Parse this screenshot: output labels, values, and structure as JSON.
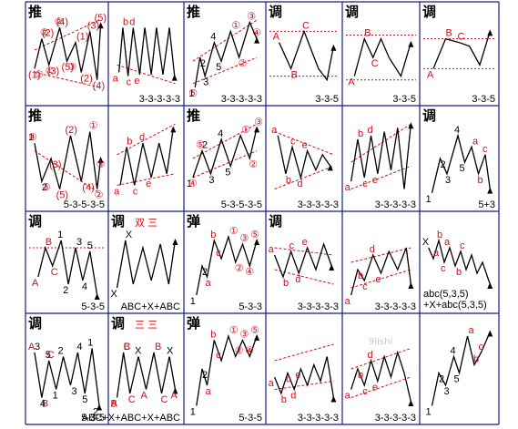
{
  "colors": {
    "grid": "#1a1a8a",
    "wave": "#000000",
    "label_red": "#d0101a",
    "channel_red": "#d0101a"
  },
  "watermark": "9lishi",
  "cells": [
    {
      "id": "r1c1",
      "title": "推",
      "caption": "",
      "labels": [
        "(1)",
        "(2)",
        "(3)",
        "(4)",
        "(5)",
        "(1)",
        "(2)",
        "(3)",
        "(4)",
        "(5)",
        "①",
        "②",
        "①",
        "②",
        "③"
      ]
    },
    {
      "id": "r1c2",
      "title": "",
      "caption": "3-3-3-3-3",
      "labels": [
        "a",
        "b",
        "c",
        "d",
        "e"
      ]
    },
    {
      "id": "r1c3",
      "title": "推",
      "caption": "3-3-3-3-3",
      "labels": [
        "1",
        "2",
        "3",
        "4",
        "5",
        "①",
        "②",
        "③",
        "④",
        "⑤"
      ]
    },
    {
      "id": "r1c4",
      "title": "调",
      "caption": "3-3-5",
      "labels": [
        "A",
        "B",
        "C"
      ]
    },
    {
      "id": "r1c5",
      "title": "调",
      "caption": "3-3-5",
      "labels": [
        "A",
        "B",
        "C"
      ]
    },
    {
      "id": "r1c6",
      "title": "调",
      "caption": "3-3-5",
      "labels": [
        "A",
        "B",
        "C"
      ]
    },
    {
      "id": "r2c1",
      "title": "推",
      "caption": "5-3-5-3-5",
      "labels": [
        "1",
        "2",
        "(3)",
        "(5)",
        "(2)",
        "(4)",
        "①",
        "②",
        "③",
        "④",
        "⑤"
      ]
    },
    {
      "id": "r2c2",
      "title": "",
      "caption": "",
      "labels": [
        "a",
        "b",
        "c",
        "d",
        "e"
      ]
    },
    {
      "id": "r2c3",
      "title": "推",
      "caption": "5-3-5-3-5",
      "labels": [
        "1",
        "2",
        "3",
        "4",
        "5",
        "①",
        "②",
        "③",
        "④",
        "⑤"
      ]
    },
    {
      "id": "r2c4",
      "title": "",
      "caption": "3-3-3-3-3",
      "labels": [
        "a",
        "b",
        "c",
        "d",
        "e"
      ]
    },
    {
      "id": "r2c5",
      "title": "",
      "caption": "3-3-3-3-3",
      "labels": [
        "a",
        "b",
        "c",
        "d",
        "e"
      ]
    },
    {
      "id": "r2c6",
      "title": "调",
      "caption": "5+3",
      "labels": [
        "1",
        "2",
        "3",
        "4",
        "5",
        "a",
        "b",
        "c"
      ]
    },
    {
      "id": "r3c1",
      "title": "调",
      "caption": "5-3-5",
      "labels": [
        "A",
        "B",
        "C",
        "1",
        "2",
        "3",
        "4",
        "5"
      ]
    },
    {
      "id": "r3c2",
      "title": "调",
      "caption": "ABC+X+ABC",
      "subtitle": "双 三",
      "labels": [
        "X",
        "X"
      ]
    },
    {
      "id": "r3c3",
      "title": "弹",
      "caption": "5-3-3",
      "labels": [
        "1",
        "2",
        "a",
        "b",
        "c",
        "①",
        "②",
        "③",
        "④",
        "⑤"
      ]
    },
    {
      "id": "r3c4",
      "title": "调",
      "caption": "3-3-3-3-3",
      "labels": [
        "a",
        "b",
        "c",
        "d",
        "e"
      ]
    },
    {
      "id": "r3c5",
      "title": "",
      "caption": "3-3-3-3-3",
      "labels": [
        "a",
        "b",
        "c",
        "d",
        "e"
      ]
    },
    {
      "id": "r3c6",
      "title": "",
      "caption": "abc(5,3,5)+X+abc(5,3,5)",
      "caption_lines": [
        "abc(5,3,5)",
        "+X+abc(5,3,5)"
      ],
      "labels": [
        "X",
        "a",
        "b",
        "c",
        "a",
        "b",
        "c"
      ]
    },
    {
      "id": "r4c1",
      "title": "调",
      "caption": "5-3-5",
      "labels": [
        "A",
        "B",
        "C",
        "1",
        "2",
        "3",
        "4",
        "5",
        "1",
        "2",
        "3",
        "4",
        "5"
      ]
    },
    {
      "id": "r4c2",
      "title": "调",
      "caption": "ABC+X+ABC+X+ABC",
      "subtitle": "三 三",
      "labels": [
        "A",
        "B",
        "C",
        "X",
        "A",
        "B",
        "C",
        "X",
        "A",
        "B",
        "C"
      ]
    },
    {
      "id": "r4c3",
      "title": "弹",
      "caption": "5-3-5",
      "labels": [
        "1",
        "2",
        "a",
        "b",
        "c",
        "①",
        "②",
        "③",
        "④",
        "⑤"
      ]
    },
    {
      "id": "r4c4",
      "title": "",
      "caption": "3-3-3-3-3",
      "labels": [
        "a",
        "b",
        "c",
        "d",
        "e"
      ]
    },
    {
      "id": "r4c5",
      "title": "",
      "caption": "3-3-3-3-3",
      "labels": [
        "a",
        "b",
        "c",
        "d",
        "e"
      ]
    },
    {
      "id": "r4c6",
      "title": "",
      "caption": "",
      "labels": [
        "1",
        "2",
        "3",
        "4",
        "5",
        "a",
        "b",
        "c"
      ]
    }
  ]
}
